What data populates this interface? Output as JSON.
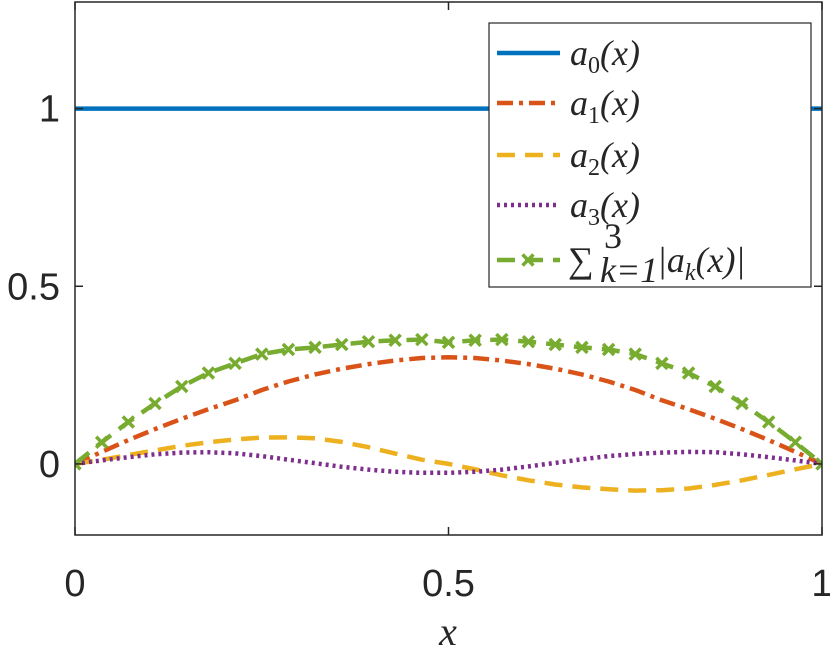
{
  "chart_data": {
    "type": "line",
    "title": "",
    "xlabel": "x",
    "ylabel": "",
    "xlim": [
      0,
      1
    ],
    "ylim": [
      -0.2,
      1.3
    ],
    "x_ticks": [
      0,
      0.5,
      1
    ],
    "x_tick_labels": [
      "0",
      "0.5",
      "1"
    ],
    "y_ticks": [
      0,
      0.5,
      1
    ],
    "y_tick_labels": [
      "0",
      "0.5",
      "1"
    ],
    "grid": false,
    "legend_position": "top-right",
    "x": [
      0,
      0.0357,
      0.0714,
      0.1071,
      0.1429,
      0.1786,
      0.2143,
      0.25,
      0.2857,
      0.3214,
      0.3571,
      0.3929,
      0.4286,
      0.4643,
      0.5,
      0.5357,
      0.5714,
      0.6071,
      0.6429,
      0.6786,
      0.7143,
      0.75,
      0.7857,
      0.8214,
      0.8571,
      0.8929,
      0.9286,
      0.9643,
      1
    ],
    "series": [
      {
        "name": "a_0(x)",
        "legend": {
          "base": "a",
          "sub": "0",
          "arg": "(x)"
        },
        "color": "#0072BD",
        "dash": "solid",
        "values": [
          1,
          1,
          1,
          1,
          1,
          1,
          1,
          1,
          1,
          1,
          1,
          1,
          1,
          1,
          1,
          1,
          1,
          1,
          1,
          1,
          1,
          1,
          1,
          1,
          1,
          1,
          1,
          1,
          1
        ]
      },
      {
        "name": "a_1(x)",
        "legend": {
          "base": "a",
          "sub": "1",
          "arg": "(x)"
        },
        "color": "#D95319",
        "dash": "dashdot",
        "values": [
          0,
          0.034,
          0.067,
          0.098,
          0.127,
          0.154,
          0.179,
          0.208,
          0.232,
          0.252,
          0.268,
          0.281,
          0.291,
          0.298,
          0.3,
          0.298,
          0.291,
          0.281,
          0.268,
          0.252,
          0.232,
          0.208,
          0.179,
          0.154,
          0.127,
          0.098,
          0.067,
          0.034,
          0
        ]
      },
      {
        "name": "a_2(x)",
        "legend": {
          "base": "a",
          "sub": "2",
          "arg": "(x)"
        },
        "color": "#EDB120",
        "dash": "dashed",
        "values": [
          0,
          0.012,
          0.025,
          0.038,
          0.051,
          0.061,
          0.069,
          0.074,
          0.075,
          0.072,
          0.062,
          0.047,
          0.029,
          0.012,
          0,
          -0.015,
          -0.032,
          -0.046,
          -0.058,
          -0.066,
          -0.071,
          -0.075,
          -0.074,
          -0.069,
          -0.059,
          -0.046,
          -0.031,
          -0.015,
          0
        ]
      },
      {
        "name": "a_3(x)",
        "legend": {
          "base": "a",
          "sub": "3",
          "arg": "(x)"
        },
        "color": "#7E2F8E",
        "dash": "dotted",
        "values": [
          0,
          0.01,
          0.019,
          0.027,
          0.032,
          0.033,
          0.03,
          0.022,
          0.012,
          0.002,
          -0.008,
          -0.016,
          -0.022,
          -0.025,
          -0.025,
          -0.022,
          -0.016,
          -0.007,
          0.003,
          0.013,
          0.022,
          0.028,
          0.032,
          0.034,
          0.033,
          0.027,
          0.019,
          0.01,
          0
        ]
      },
      {
        "name": "sum_{k=1}^{3} |a_k(x)|",
        "legend": {
          "sum_symbol": "∑",
          "upper": "3",
          "lower": "k=1",
          "body_pre": "|a",
          "body_sub": "k",
          "body_post": "(x)|"
        },
        "color": "#77AC30",
        "dash": "dashed",
        "marker": "x",
        "values": [
          0,
          0.061,
          0.118,
          0.17,
          0.218,
          0.256,
          0.283,
          0.309,
          0.322,
          0.328,
          0.336,
          0.344,
          0.348,
          0.35,
          0.342,
          0.348,
          0.35,
          0.344,
          0.336,
          0.328,
          0.322,
          0.309,
          0.283,
          0.256,
          0.218,
          0.17,
          0.118,
          0.061,
          0
        ]
      }
    ]
  }
}
